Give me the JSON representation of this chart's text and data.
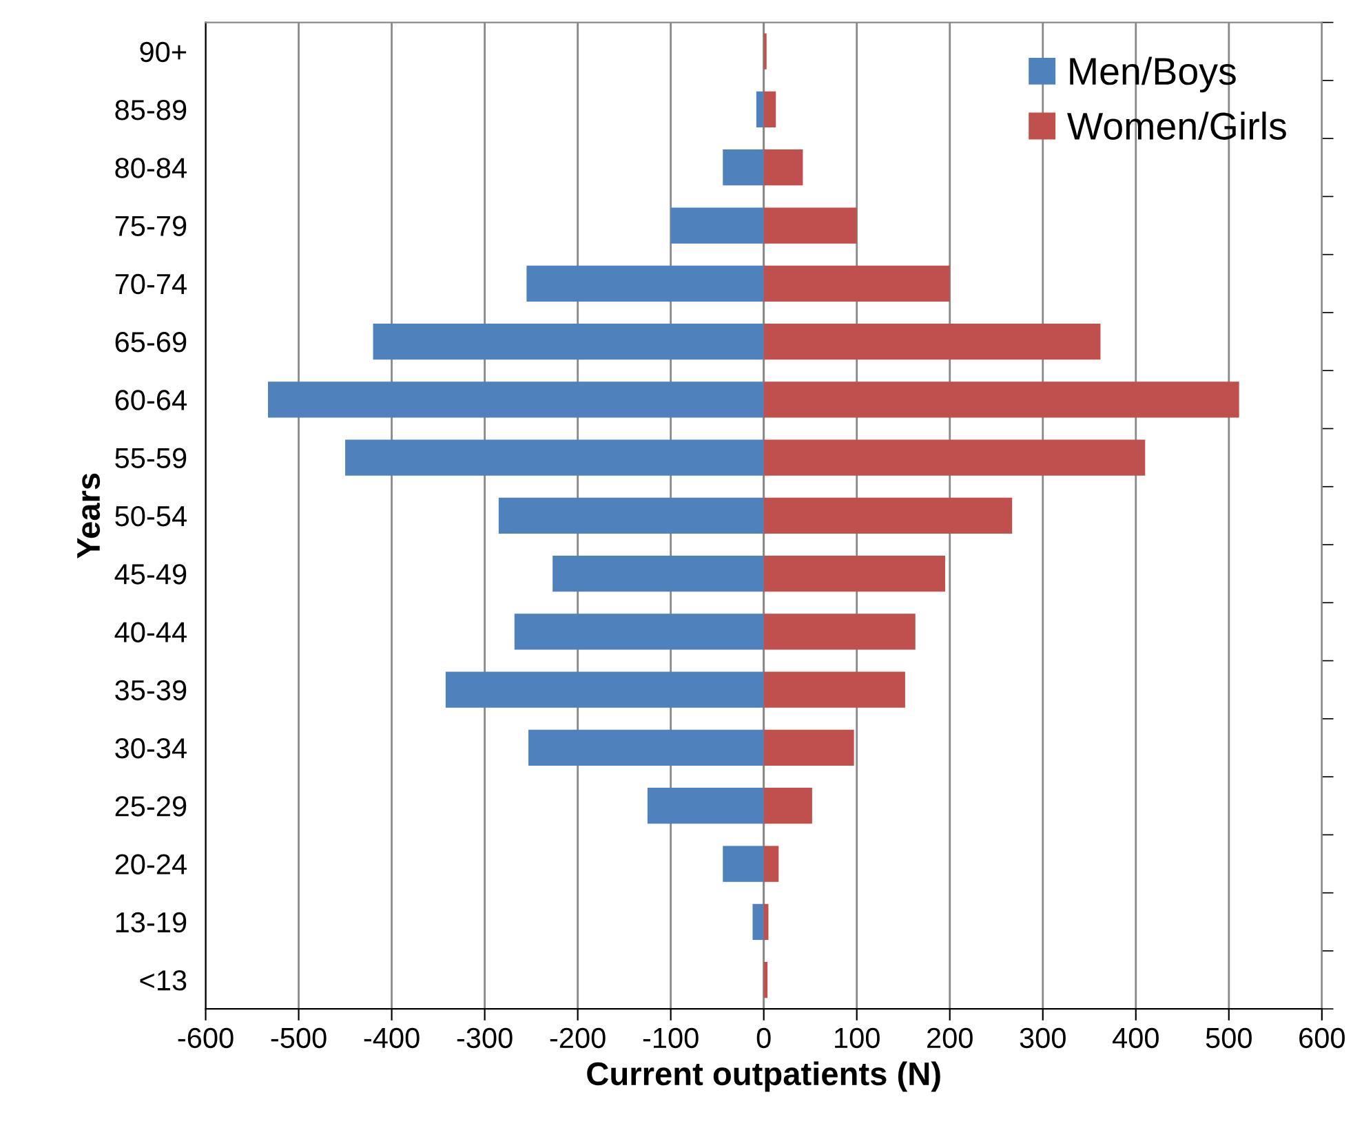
{
  "chart_data": {
    "type": "bar",
    "orientation": "horizontal",
    "ylabel": "Years",
    "xlabel": "Current outpatients (N)",
    "categories": [
      "90+",
      "85-89",
      "80-84",
      "75-79",
      "70-74",
      "65-69",
      "60-64",
      "55-59",
      "50-54",
      "45-49",
      "40-44",
      "35-39",
      "30-34",
      "25-29",
      "20-24",
      "13-19",
      "<13"
    ],
    "series": [
      {
        "name": "Men/Boys",
        "color": "#4f81bd",
        "values": [
          null,
          -8,
          -44,
          -100,
          -255,
          -420,
          -533,
          -450,
          -285,
          -227,
          -268,
          -342,
          -253,
          -125,
          -44,
          -12,
          0
        ]
      },
      {
        "name": "Women/Girls",
        "color": "#c0504d",
        "values": [
          3,
          13,
          42,
          100,
          200,
          362,
          511,
          410,
          267,
          195,
          163,
          152,
          97,
          52,
          16,
          5,
          4
        ]
      }
    ],
    "xlim": [
      -600,
      600
    ],
    "xticks": [
      -600,
      -500,
      -400,
      -300,
      -200,
      -100,
      0,
      100,
      200,
      300,
      400,
      500,
      600
    ],
    "stacked": true,
    "grid": "x",
    "legend": "top right"
  }
}
